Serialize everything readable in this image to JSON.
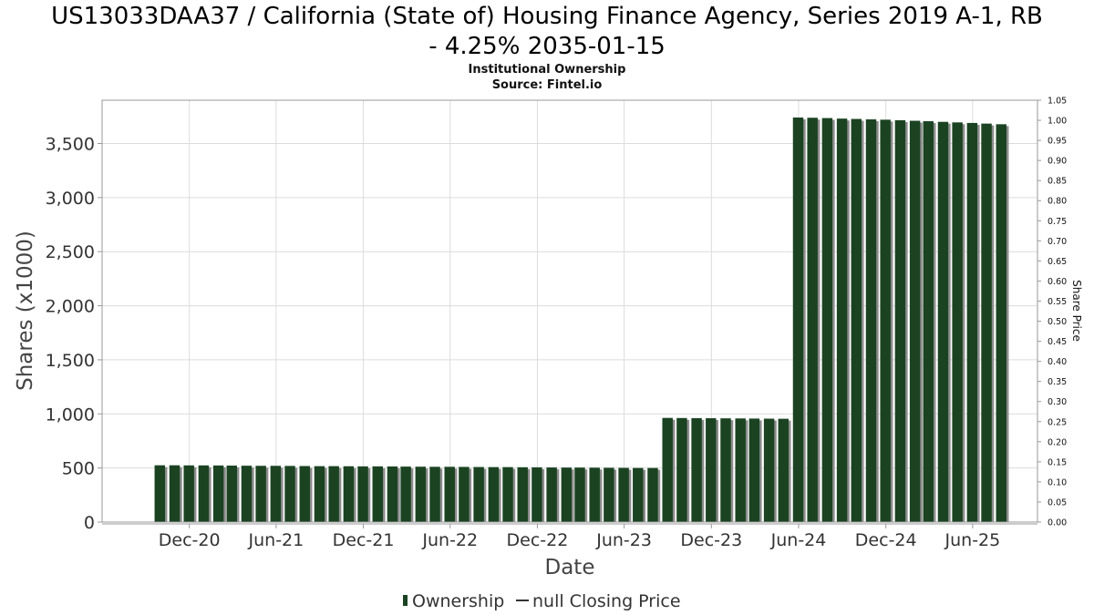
{
  "title_line1": "US13033DAA37 / California (State of) Housing Finance Agency, Series 2019 A-1, RB",
  "title_line2": "- 4.25% 2035-01-15",
  "subtitle": "Institutional Ownership",
  "source": "Source: Fintel.io",
  "legend": {
    "ownership_label": "Ownership",
    "price_label": "null Closing Price"
  },
  "colors": {
    "bar": "#1b4322",
    "bar_shadow": "#8c8c8c",
    "grid": "#dcdcdc",
    "frame": "#999999"
  },
  "chart_data": {
    "type": "bar",
    "xlabel": "Date",
    "ylabel": "Shares (x1000)",
    "y2label": "Share Price",
    "ylim": [
      0,
      3900
    ],
    "y2lim": [
      0,
      1.05
    ],
    "yticks": [
      "0",
      "500",
      "1,000",
      "1,500",
      "2,000",
      "2,500",
      "3,000",
      "3,500"
    ],
    "yticks_values": [
      0,
      500,
      1000,
      1500,
      2000,
      2500,
      3000,
      3500
    ],
    "y2ticks": [
      "0.00",
      "0.05",
      "0.10",
      "0.15",
      "0.20",
      "0.25",
      "0.30",
      "0.35",
      "0.40",
      "0.45",
      "0.50",
      "0.55",
      "0.60",
      "0.65",
      "0.70",
      "0.75",
      "0.80",
      "0.85",
      "0.90",
      "0.95",
      "1.00",
      "1.05"
    ],
    "xtick_labels": [
      "Dec-20",
      "Jun-21",
      "Dec-21",
      "Jun-22",
      "Dec-22",
      "Jun-23",
      "Dec-23",
      "Jun-24",
      "Dec-24",
      "Jun-25"
    ],
    "xtick_dates": [
      "2020-12-01",
      "2021-06-01",
      "2021-12-01",
      "2022-06-01",
      "2022-12-01",
      "2023-06-01",
      "2023-12-01",
      "2024-06-01",
      "2024-12-01",
      "2025-06-01"
    ],
    "xlim": [
      "2020-06-01",
      "2025-10-15"
    ],
    "grid": true,
    "legend_position": "bottom-center",
    "series": [
      {
        "name": "Ownership",
        "dates": [
          "2020-09-30",
          "2020-10-31",
          "2020-11-30",
          "2020-12-31",
          "2021-01-31",
          "2021-02-28",
          "2021-03-31",
          "2021-04-30",
          "2021-05-31",
          "2021-06-30",
          "2021-07-31",
          "2021-08-31",
          "2021-09-30",
          "2021-10-31",
          "2021-11-30",
          "2021-12-31",
          "2022-01-31",
          "2022-02-28",
          "2022-03-31",
          "2022-04-30",
          "2022-05-31",
          "2022-06-30",
          "2022-07-31",
          "2022-08-31",
          "2022-09-30",
          "2022-10-31",
          "2022-11-30",
          "2022-12-31",
          "2023-01-31",
          "2023-02-28",
          "2023-03-31",
          "2023-04-30",
          "2023-05-31",
          "2023-06-30",
          "2023-07-31",
          "2023-08-31",
          "2023-09-30",
          "2023-10-31",
          "2023-11-30",
          "2023-12-31",
          "2024-01-31",
          "2024-02-29",
          "2024-03-31",
          "2024-04-30",
          "2024-05-31",
          "2024-06-30",
          "2024-07-31",
          "2024-08-31",
          "2024-09-30",
          "2024-10-31",
          "2024-11-30",
          "2024-12-31",
          "2025-01-31",
          "2025-02-28",
          "2025-03-31",
          "2025-04-30",
          "2025-05-31",
          "2025-06-30",
          "2025-07-31"
        ],
        "values": [
          525,
          525,
          524,
          524,
          523,
          522,
          521,
          520,
          520,
          519,
          518,
          517,
          517,
          516,
          515,
          515,
          514,
          513,
          512,
          511,
          511,
          510,
          509,
          508,
          508,
          507,
          506,
          505,
          504,
          504,
          503,
          502,
          501,
          500,
          500,
          963,
          962,
          961,
          960,
          959,
          958,
          957,
          956,
          955,
          3740,
          3738,
          3735,
          3730,
          3727,
          3723,
          3720,
          3715,
          3710,
          3706,
          3700,
          3695,
          3690,
          3684,
          3678
        ]
      }
    ]
  }
}
